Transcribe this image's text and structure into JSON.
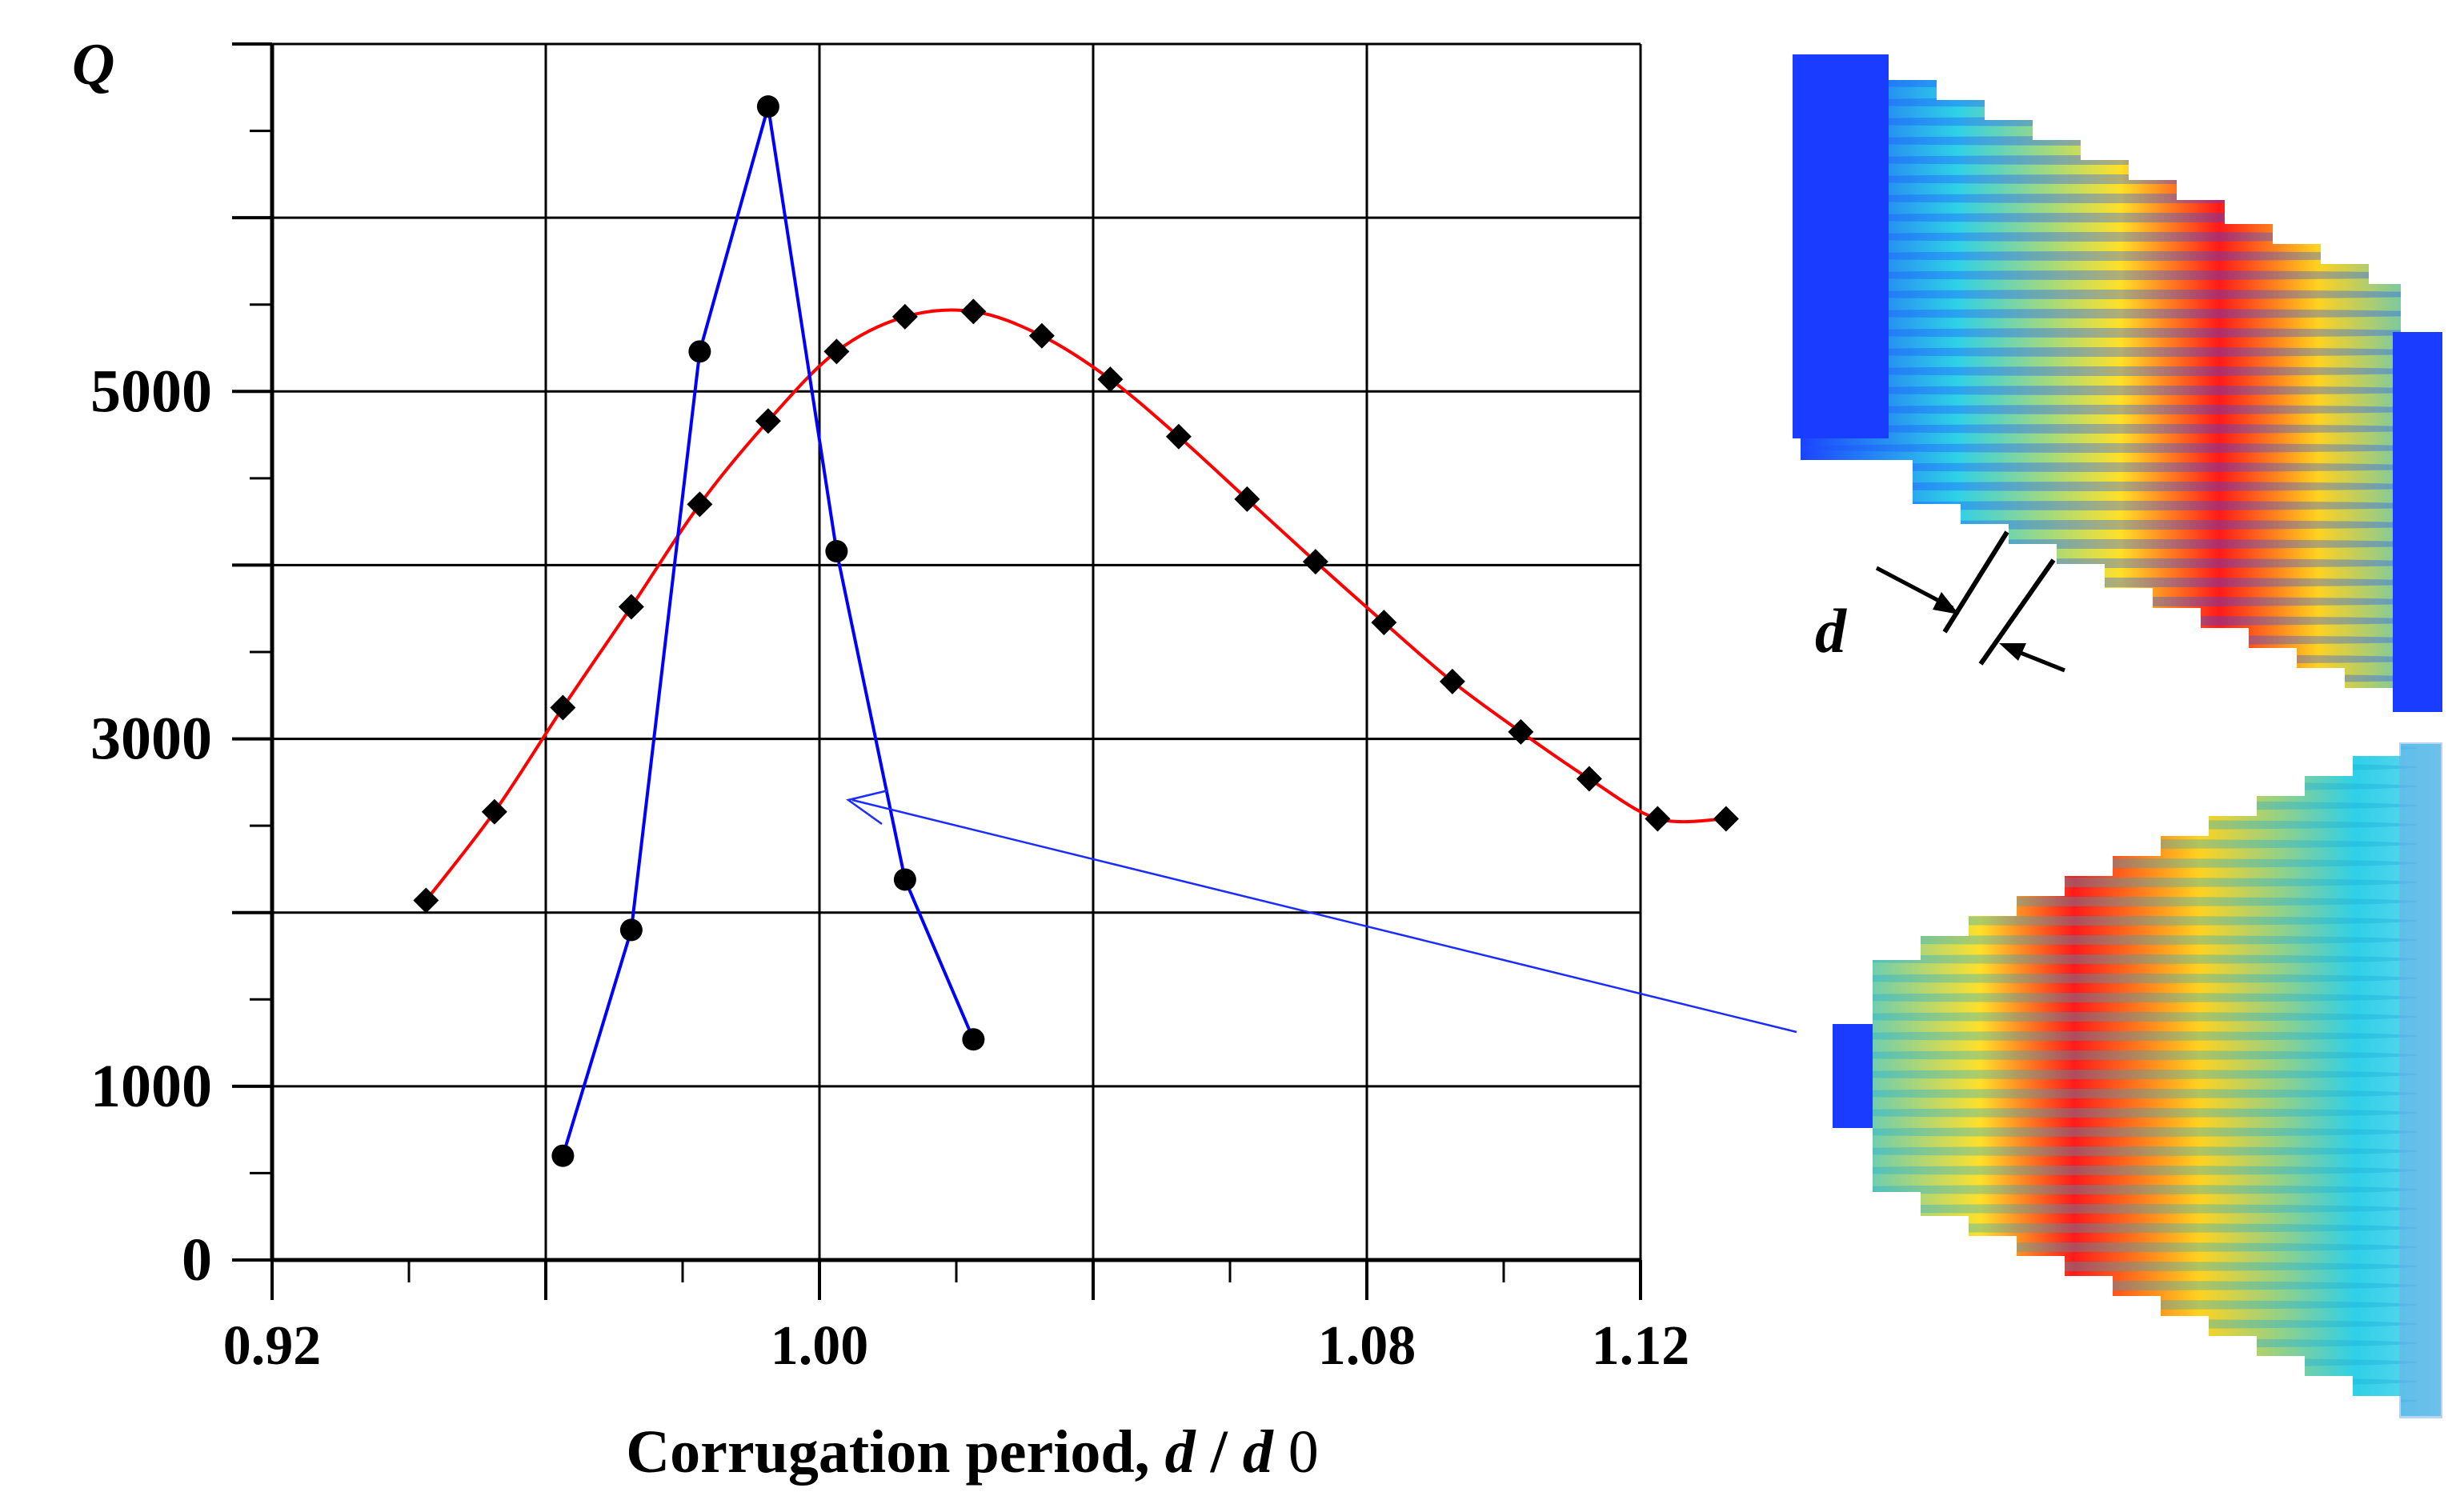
{
  "chart_data": {
    "type": "line",
    "title": "",
    "xlabel_parts": [
      "Corrugation period, ",
      "d",
      " / ",
      "d",
      " 0"
    ],
    "ylabel": "Q",
    "xlim": [
      0.92,
      1.12
    ],
    "ylim": [
      0,
      7000
    ],
    "xticks": [
      0.92,
      0.96,
      1.0,
      1.04,
      1.08,
      1.12
    ],
    "xticklabels": [
      "0.92",
      "",
      "1.00",
      "",
      "1.08",
      "1.12"
    ],
    "yticks": [
      0,
      1000,
      2000,
      3000,
      4000,
      5000,
      6000,
      7000
    ],
    "yticklabels": [
      "0",
      "1000",
      "",
      "3000",
      "",
      "5000",
      "",
      ""
    ],
    "grid": true,
    "series": [
      {
        "name": "red",
        "color": "#ff0000",
        "marker": "diamond",
        "x": [
          0.9425,
          0.9525,
          0.9625,
          0.9725,
          0.9825,
          0.9925,
          1.0025,
          1.0125,
          1.0225,
          1.0325,
          1.0425,
          1.0525,
          1.0625,
          1.0725,
          1.0825,
          1.0925,
          1.1025,
          1.1125,
          1.1225,
          1.1325
        ],
        "y": [
          2070,
          2580,
          3180,
          3760,
          4350,
          4830,
          5230,
          5430,
          5460,
          5320,
          5070,
          4740,
          4380,
          4020,
          3670,
          3330,
          3040,
          2770,
          2540,
          2540
        ]
      },
      {
        "name": "blue",
        "color": "#0000ff",
        "marker": "circle",
        "x": [
          0.9625,
          0.9725,
          0.9825,
          0.9925,
          1.0025,
          1.0125,
          1.0225
        ],
        "y": [
          600,
          1900,
          5230,
          6640,
          4080,
          2190,
          1270
        ]
      }
    ],
    "annotations": [
      "d"
    ]
  }
}
